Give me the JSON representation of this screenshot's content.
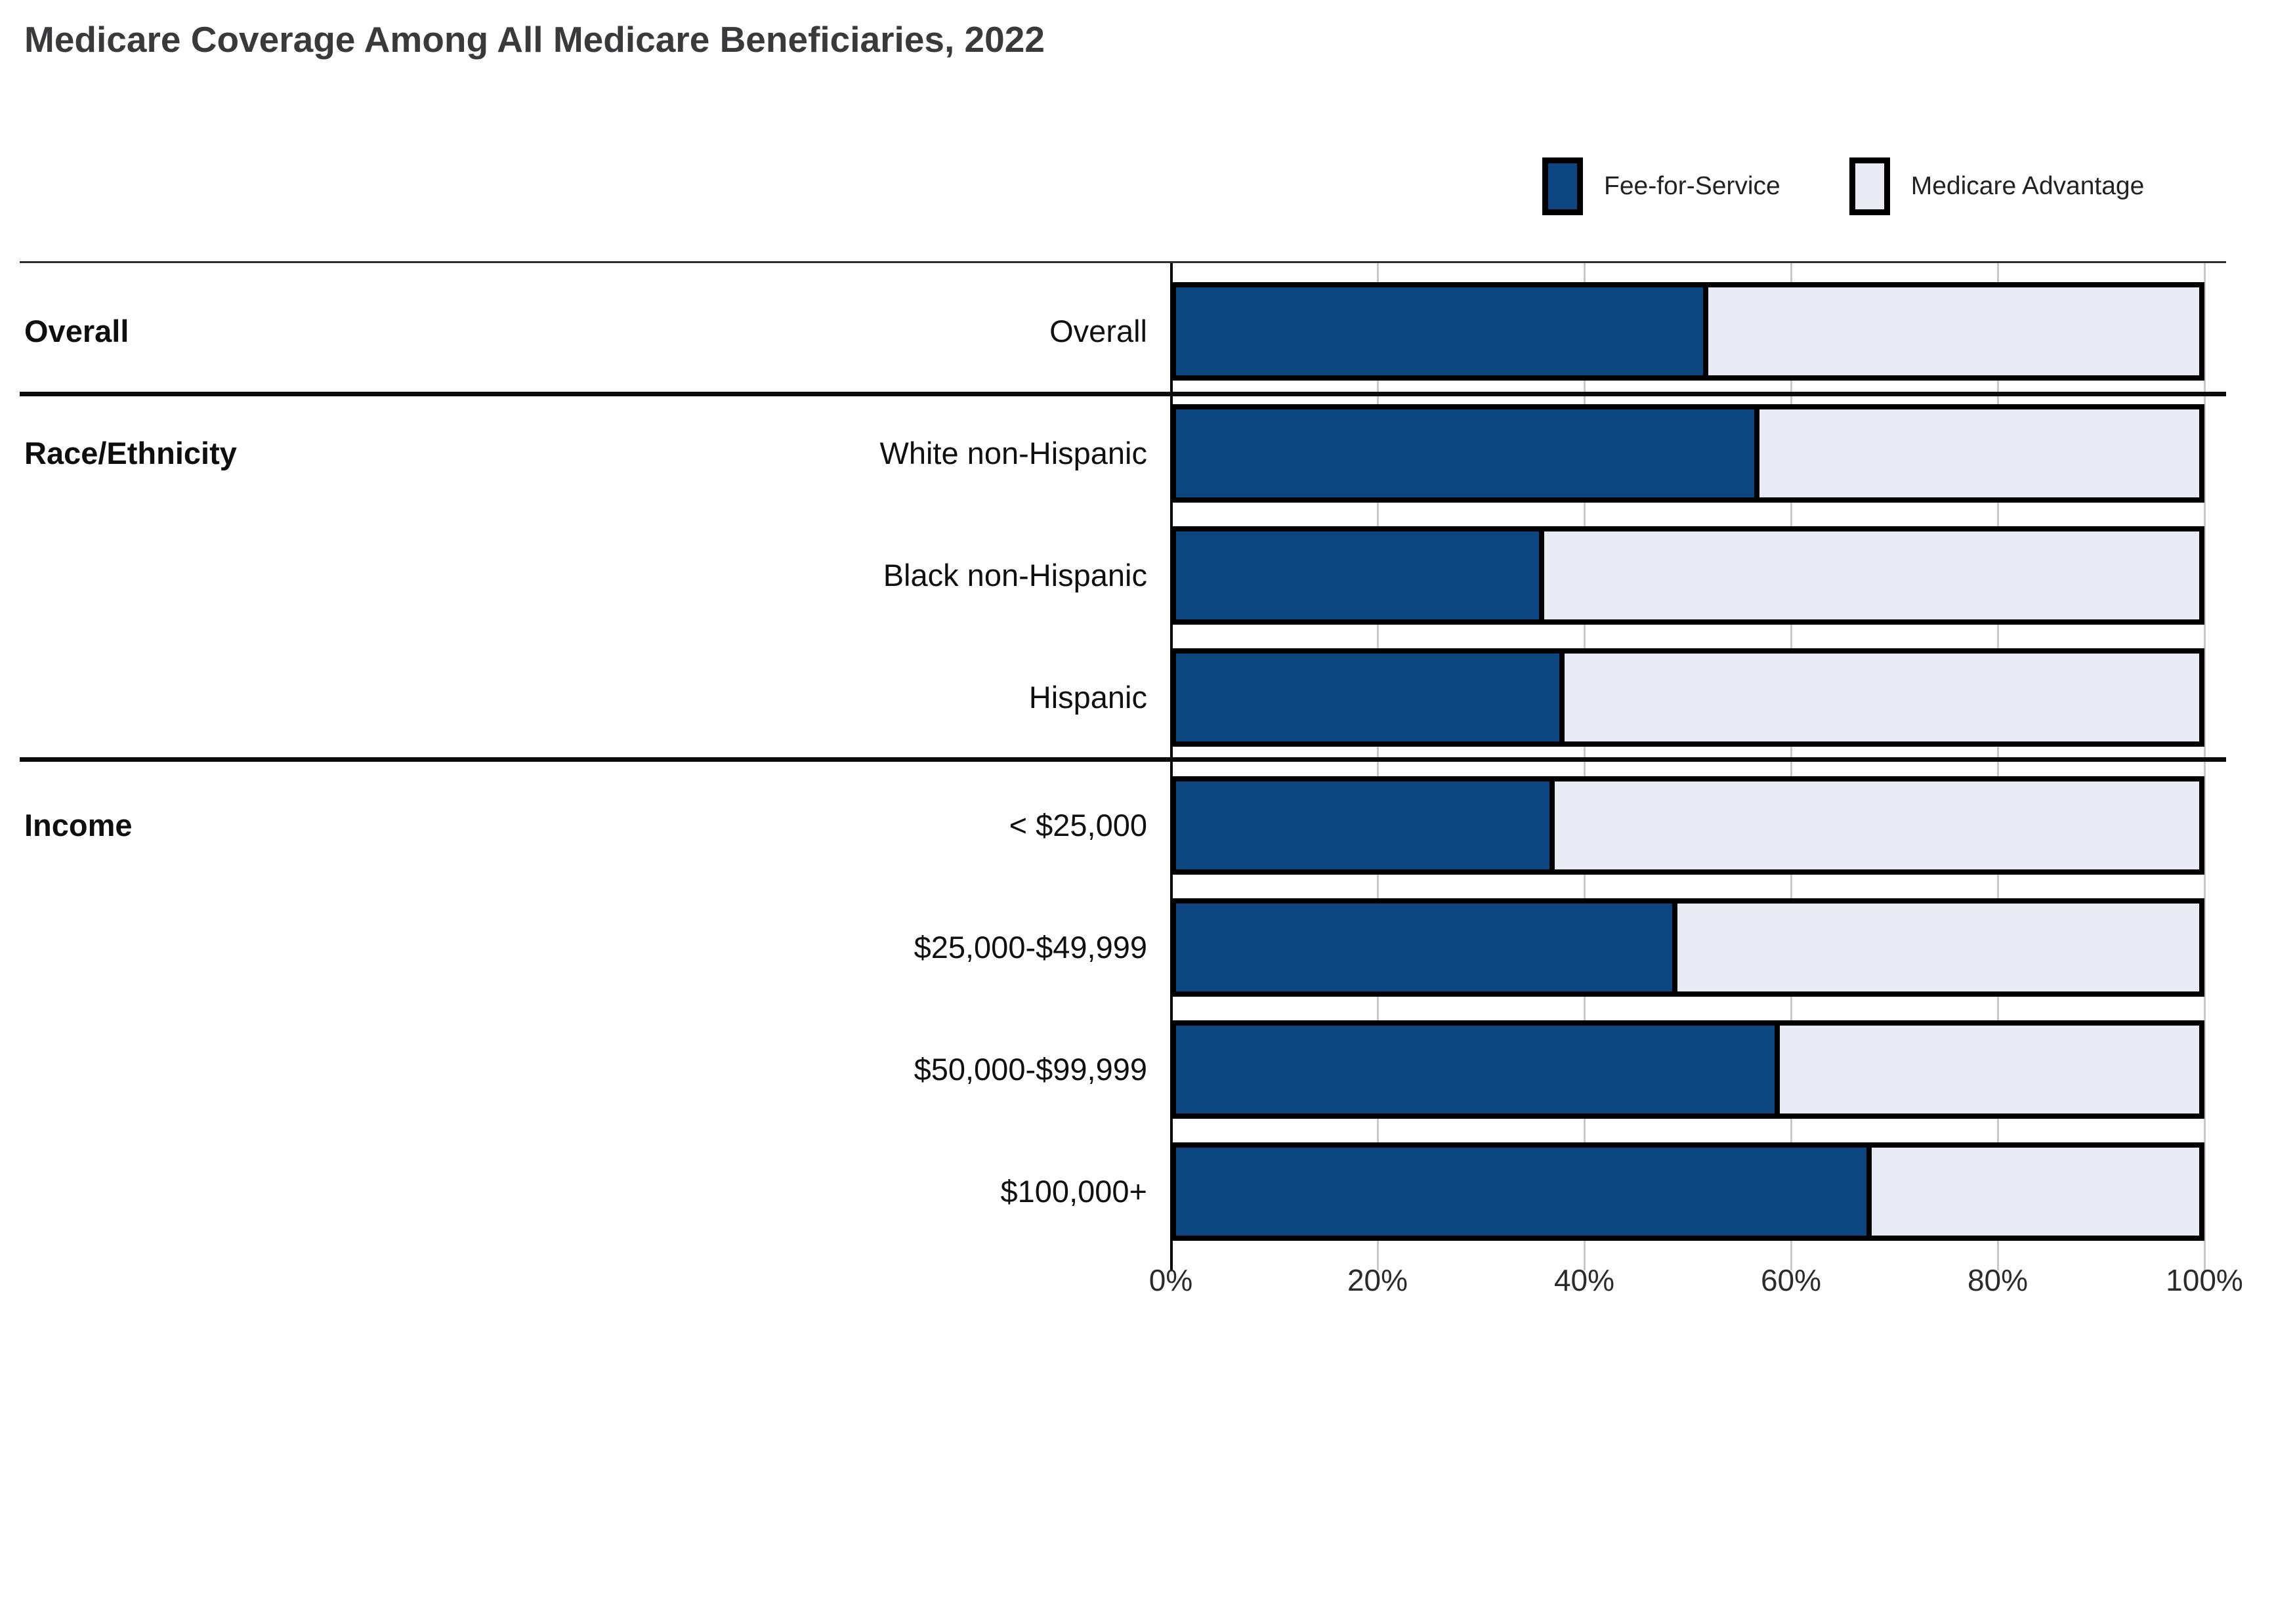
{
  "title": "Medicare Coverage Among All Medicare Beneficiaries, 2022",
  "legend": [
    {
      "label": "Fee-for-Service",
      "swatch": "ffs-swatch"
    },
    {
      "label": "Medicare Advantage",
      "swatch": "ma-swatch"
    }
  ],
  "chart_data": {
    "type": "bar",
    "orientation": "horizontal",
    "stacked": true,
    "unit": "percent",
    "title": "Medicare Coverage Among All Medicare Beneficiaries, 2022",
    "legend_position": "top-right",
    "grid": true,
    "axis": {
      "min": 0,
      "max": 100,
      "ticks": [
        "0%",
        "20%",
        "40%",
        "60%",
        "80%",
        "100%"
      ]
    },
    "groups": [
      {
        "label": "Overall"
      },
      {
        "label": "Race/Ethnicity"
      },
      {
        "label": "Income"
      }
    ],
    "series": [
      {
        "name": "Fee-for-Service",
        "color": "#0b4681"
      },
      {
        "name": "Medicare Advantage",
        "color": "#e8ebf4"
      }
    ],
    "rows": [
      {
        "group": "Overall",
        "label": "Overall",
        "ffs": 52,
        "ma": 48
      },
      {
        "group": "Race/Ethnicity",
        "label": "White non-Hispanic",
        "ffs": 57,
        "ma": 43
      },
      {
        "group": "Race/Ethnicity",
        "label": "Black non-Hispanic",
        "ffs": 36,
        "ma": 64
      },
      {
        "group": "Race/Ethnicity",
        "label": "Hispanic",
        "ffs": 38,
        "ma": 62
      },
      {
        "group": "Income",
        "label": "< $25,000",
        "ffs": 37,
        "ma": 63
      },
      {
        "group": "Income",
        "label": "$25,000-$49,999",
        "ffs": 49,
        "ma": 51
      },
      {
        "group": "Income",
        "label": "$50,000-$99,999",
        "ffs": 59,
        "ma": 41
      },
      {
        "group": "Income",
        "label": "$100,000+",
        "ffs": 68,
        "ma": 32
      }
    ],
    "colors": {
      "ffs": "#0b4681",
      "ma": "#e8ebf4",
      "border": "#000000",
      "gridline": "#c9c9c9",
      "title_text": "#3a3a3c"
    }
  }
}
